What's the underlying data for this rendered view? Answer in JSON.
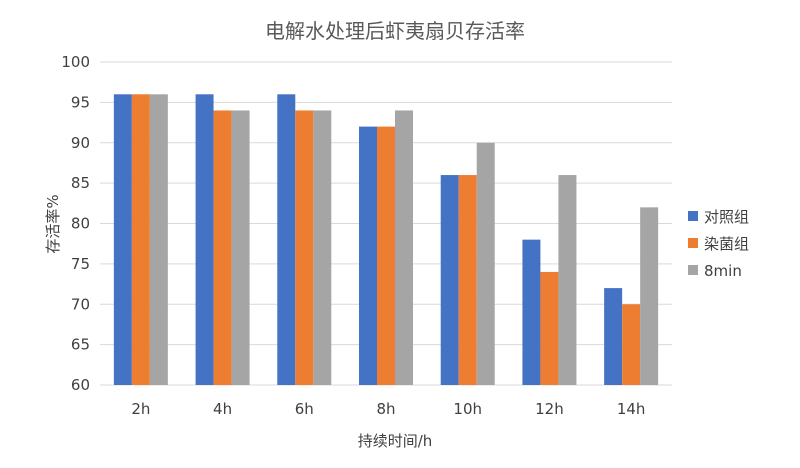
{
  "chart_data": {
    "type": "bar",
    "title": "电解水处理后虾夷扇贝存活率",
    "xlabel": "持续时间/h",
    "ylabel": "存活率%",
    "categories": [
      "2h",
      "4h",
      "6h",
      "8h",
      "10h",
      "12h",
      "14h"
    ],
    "ylim": [
      60,
      100
    ],
    "yticks": [
      60,
      65,
      70,
      75,
      80,
      85,
      90,
      95,
      100
    ],
    "grid": true,
    "legend_position": "right",
    "series": [
      {
        "name": "对照组",
        "color": "#4472c4",
        "values": [
          96,
          96,
          96,
          92,
          86,
          78,
          72
        ]
      },
      {
        "name": "染菌组",
        "color": "#ed7d31",
        "values": [
          96,
          94,
          94,
          92,
          86,
          74,
          70
        ]
      },
      {
        "name": "8min",
        "color": "#a5a5a5",
        "values": [
          96,
          94,
          94,
          94,
          90,
          86,
          82
        ]
      }
    ]
  }
}
